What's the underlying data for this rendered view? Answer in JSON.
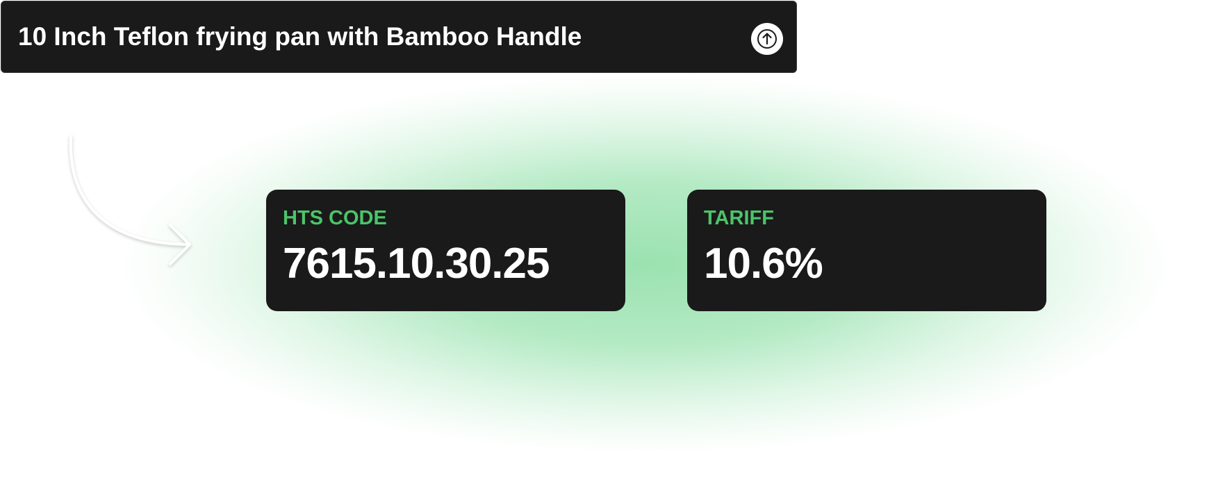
{
  "query": {
    "text": "10 Inch Teflon frying pan with Bamboo Handle",
    "submit_icon": "arrow-up-icon"
  },
  "results": {
    "hts": {
      "label": "HTS CODE",
      "value": "7615.10.30.25"
    },
    "tariff": {
      "label": "TARIFF",
      "value": "10.6%"
    }
  },
  "colors": {
    "card_background": "#1a1a1a",
    "label_accent": "#4cc46a",
    "glow": "#a6e6b9",
    "text": "#ffffff"
  }
}
